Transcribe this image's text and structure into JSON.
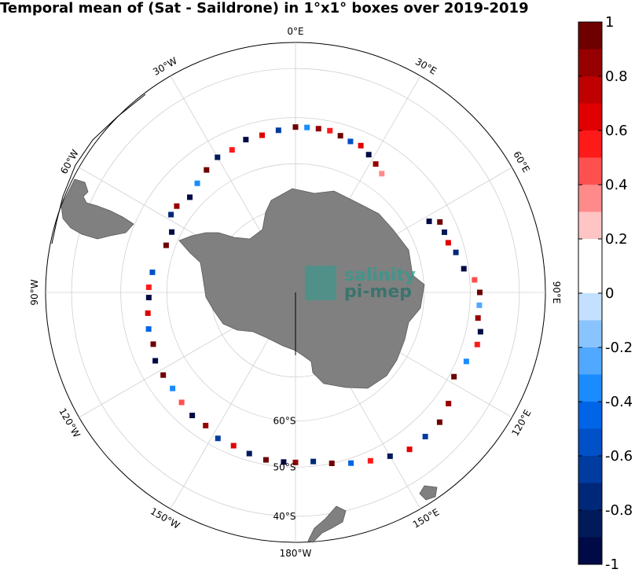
{
  "title": "Temporal mean of (Sat - Saildrone) in 1°x1° boxes over 2019-2019",
  "map": {
    "projection": "south-polar-stereographic",
    "lon_labels": [
      {
        "text": "0°E",
        "lon": 0
      },
      {
        "text": "30°E",
        "lon": 30
      },
      {
        "text": "60°E",
        "lon": 60
      },
      {
        "text": "90°E",
        "lon": 90
      },
      {
        "text": "120°E",
        "lon": 120
      },
      {
        "text": "150°E",
        "lon": 150
      },
      {
        "text": "180°W",
        "lon": 180
      },
      {
        "text": "150°W",
        "lon": -150
      },
      {
        "text": "120°W",
        "lon": -120
      },
      {
        "text": "90°W",
        "lon": -90
      },
      {
        "text": "60°W",
        "lon": -60
      },
      {
        "text": "30°W",
        "lon": -30
      }
    ],
    "lat_labels": [
      {
        "text": "60°S",
        "lat": -60
      },
      {
        "text": "50°S",
        "lat": -50
      },
      {
        "text": "40°S",
        "lat": -40
      }
    ],
    "lat_circles": [
      -70,
      -60,
      -50,
      -40
    ],
    "watermark": {
      "line1": "salinity",
      "line2": "pi-mep"
    },
    "ocean_color": "#ffffff",
    "land_color": "#808080"
  },
  "colorbar": {
    "min": -1,
    "max": 1,
    "tick_labels": [
      "1",
      "0.8",
      "0.6",
      "0.4",
      "0.2",
      "0",
      "-0.2",
      "-0.4",
      "-0.6",
      "-0.8",
      "-1"
    ],
    "colors": [
      "#6e0000",
      "#960000",
      "#be0000",
      "#e00000",
      "#ff1a1a",
      "#ff5050",
      "#ff8a8a",
      "#ffc4c4",
      "#ffffff",
      "#ffffff",
      "#c4e0ff",
      "#8ac4ff",
      "#50a8ff",
      "#1a8cff",
      "#0064e6",
      "#0050c8",
      "#003ca0",
      "#002878",
      "#001a5a",
      "#000a46"
    ]
  },
  "chart_data": {
    "type": "scatter",
    "title": "Temporal mean of (Sat - Saildrone) in 1°x1° boxes over 2019-2019",
    "description_of_values": "Sat - Saildrone salinity difference",
    "clim": [
      -1,
      1
    ],
    "points": [
      {
        "lon": 0,
        "lat": -52,
        "v": 0.9
      },
      {
        "lon": 4,
        "lat": -52,
        "v": -0.3
      },
      {
        "lon": 8,
        "lat": -52,
        "v": 0.8
      },
      {
        "lon": 12,
        "lat": -52,
        "v": 0.6
      },
      {
        "lon": 16,
        "lat": -52.5,
        "v": 0.9
      },
      {
        "lon": 20,
        "lat": -53,
        "v": -0.5
      },
      {
        "lon": 24,
        "lat": -53,
        "v": 0.7
      },
      {
        "lon": 28,
        "lat": -54,
        "v": -0.9
      },
      {
        "lon": 32,
        "lat": -55,
        "v": 0.8
      },
      {
        "lon": 36,
        "lat": -56,
        "v": 0.4
      },
      {
        "lon": 62,
        "lat": -55,
        "v": -0.9
      },
      {
        "lon": 64,
        "lat": -53,
        "v": 0.9
      },
      {
        "lon": 68,
        "lat": -53,
        "v": -0.8
      },
      {
        "lon": 72,
        "lat": -53,
        "v": 0.7
      },
      {
        "lon": 76,
        "lat": -52,
        "v": -0.7
      },
      {
        "lon": 82,
        "lat": -51,
        "v": -0.9
      },
      {
        "lon": 86,
        "lat": -49,
        "v": 0.5
      },
      {
        "lon": 90,
        "lat": -48,
        "v": 0.9
      },
      {
        "lon": 94,
        "lat": -48,
        "v": -0.2
      },
      {
        "lon": 98,
        "lat": -48,
        "v": 0.8
      },
      {
        "lon": 102,
        "lat": -47,
        "v": -0.9
      },
      {
        "lon": 106,
        "lat": -47,
        "v": 0.6
      },
      {
        "lon": 112,
        "lat": -48,
        "v": -0.3
      },
      {
        "lon": 118,
        "lat": -49,
        "v": 0.9
      },
      {
        "lon": 126,
        "lat": -47,
        "v": 0.8
      },
      {
        "lon": 132,
        "lat": -46,
        "v": 0.9
      },
      {
        "lon": 138,
        "lat": -46,
        "v": -0.6
      },
      {
        "lon": 144,
        "lat": -46,
        "v": 0.7
      },
      {
        "lon": 150,
        "lat": -47,
        "v": -0.8
      },
      {
        "lon": 156,
        "lat": -48,
        "v": 0.6
      },
      {
        "lon": 162,
        "lat": -49,
        "v": -0.4
      },
      {
        "lon": 168,
        "lat": -50,
        "v": 0.9
      },
      {
        "lon": 174,
        "lat": -51,
        "v": -0.7
      },
      {
        "lon": 180,
        "lat": -51,
        "v": 0.8
      },
      {
        "lon": -176,
        "lat": -51,
        "v": -0.9
      },
      {
        "lon": -170,
        "lat": -51,
        "v": 0.9
      },
      {
        "lon": -164,
        "lat": -51.5,
        "v": -0.8
      },
      {
        "lon": -158,
        "lat": -52,
        "v": 0.7
      },
      {
        "lon": -152,
        "lat": -52,
        "v": -0.6
      },
      {
        "lon": -146,
        "lat": -53,
        "v": 0.8
      },
      {
        "lon": -140,
        "lat": -53,
        "v": -0.9
      },
      {
        "lon": -134,
        "lat": -53.5,
        "v": 0.5
      },
      {
        "lon": -128,
        "lat": -54,
        "v": -0.3
      },
      {
        "lon": -122,
        "lat": -54,
        "v": 0.9
      },
      {
        "lon": -116,
        "lat": -54,
        "v": -0.9
      },
      {
        "lon": -110,
        "lat": -55,
        "v": 0.9
      },
      {
        "lon": -104,
        "lat": -55,
        "v": -0.4
      },
      {
        "lon": -98,
        "lat": -55.5,
        "v": 0.7
      },
      {
        "lon": -92,
        "lat": -56,
        "v": -0.9
      },
      {
        "lon": -88,
        "lat": -56,
        "v": 0.6
      },
      {
        "lon": -82,
        "lat": -56.5,
        "v": -0.5
      },
      {
        "lon": -70,
        "lat": -58,
        "v": 0.9
      },
      {
        "lon": -64,
        "lat": -58,
        "v": -0.9
      },
      {
        "lon": -58,
        "lat": -56,
        "v": -0.7
      },
      {
        "lon": -54,
        "lat": -56,
        "v": 0.8
      },
      {
        "lon": -48,
        "lat": -57,
        "v": -0.9
      },
      {
        "lon": -42,
        "lat": -56,
        "v": -0.3
      },
      {
        "lon": -36,
        "lat": -55,
        "v": 0.9
      },
      {
        "lon": -30,
        "lat": -54,
        "v": -0.8
      },
      {
        "lon": -24,
        "lat": -54,
        "v": 0.6
      },
      {
        "lon": -18,
        "lat": -53,
        "v": -0.9
      },
      {
        "lon": -12,
        "lat": -53,
        "v": 0.7
      },
      {
        "lon": -6,
        "lat": -52.5,
        "v": -0.6
      }
    ]
  }
}
